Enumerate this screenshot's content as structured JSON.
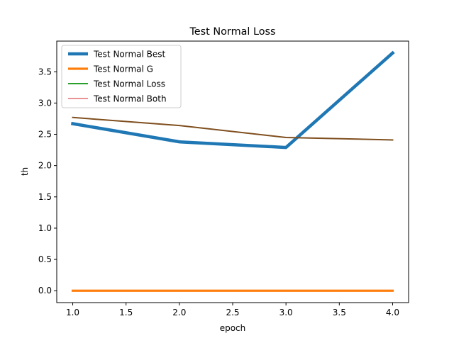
{
  "chart_data": {
    "type": "line",
    "title": "Test Normal Loss",
    "xlabel": "epoch",
    "ylabel": "th",
    "x": [
      1.0,
      2.0,
      3.0,
      4.0
    ],
    "xlim": [
      0.85,
      4.15
    ],
    "ylim": [
      -0.19,
      3.99
    ],
    "xticks": [
      1.0,
      1.5,
      2.0,
      2.5,
      3.0,
      3.5,
      4.0
    ],
    "xtick_labels": [
      "1.0",
      "1.5",
      "2.0",
      "2.5",
      "3.0",
      "3.5",
      "4.0"
    ],
    "yticks": [
      0.0,
      0.5,
      1.0,
      1.5,
      2.0,
      2.5,
      3.0,
      3.5
    ],
    "ytick_labels": [
      "0.0",
      "0.5",
      "1.0",
      "1.5",
      "2.0",
      "2.5",
      "3.0",
      "3.5"
    ],
    "grid": false,
    "legend_position": "top-left",
    "series": [
      {
        "name": "Test Normal Best",
        "values": [
          2.67,
          2.38,
          2.29,
          3.8
        ],
        "color": "#1f77b4"
      },
      {
        "name": "Test Normal G",
        "values": [
          0.0,
          0.0,
          0.0,
          0.0
        ],
        "color": "#ff7f0e"
      },
      {
        "name": "Test Normal Loss",
        "values": [
          2.77,
          2.64,
          2.45,
          2.41
        ],
        "color": "#2ca02c"
      },
      {
        "name": "Test Normal Both",
        "values": [
          2.77,
          2.64,
          2.45,
          2.41
        ],
        "color": "#d62728"
      }
    ],
    "brown_overlap_color": "#7f4f1f"
  }
}
